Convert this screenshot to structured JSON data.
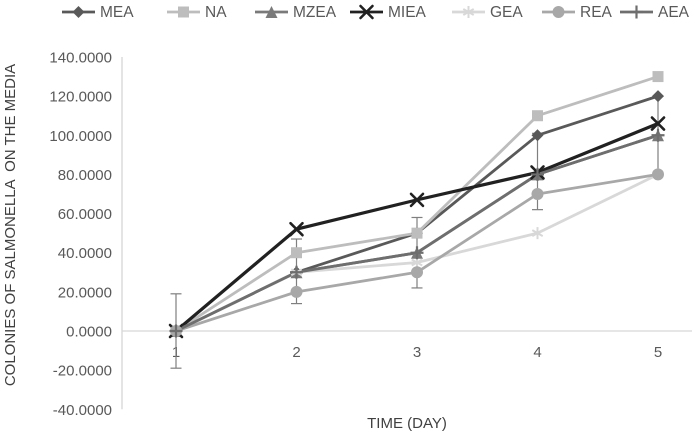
{
  "chart_data": {
    "type": "line",
    "title": "",
    "xlabel": "TIME (DAY)",
    "ylabel": "COLONIES OF SALMONELLA  ON THE MEDIA",
    "x_categories": [
      "1",
      "2",
      "3",
      "4",
      "5"
    ],
    "ylim": [
      -40,
      140
    ],
    "y_tick_labels": [
      "140.0000",
      "120.0000",
      "100.0000",
      "80.0000",
      "60.0000",
      "40.0000",
      "20.0000",
      "0.0000",
      "-20.0000",
      "-40.0000"
    ],
    "y_tick_values": [
      140,
      120,
      100,
      80,
      60,
      40,
      20,
      0,
      -20,
      -40
    ],
    "grid": "off",
    "legend_position": "top",
    "series": [
      {
        "name": "MEA",
        "marker": "diamond",
        "color": "#595959",
        "values": [
          0,
          30,
          50,
          100,
          120
        ]
      },
      {
        "name": "NA",
        "marker": "square",
        "color": "#bdbdbd",
        "values": [
          0,
          40,
          50,
          110,
          130
        ]
      },
      {
        "name": "MZEA",
        "marker": "triangle",
        "color": "#7a7a7a",
        "values": [
          0,
          30,
          40,
          80,
          100
        ]
      },
      {
        "name": "MIEA",
        "marker": "x",
        "color": "#212121",
        "values": [
          0,
          52,
          67,
          81,
          106
        ]
      },
      {
        "name": "GEA",
        "marker": "asterisk",
        "color": "#d8d8d8",
        "values": [
          0,
          30,
          35,
          50,
          80
        ]
      },
      {
        "name": "REA",
        "marker": "circle",
        "color": "#a8a8a8",
        "values": [
          0,
          20,
          30,
          70,
          80
        ]
      },
      {
        "name": "AEA",
        "marker": "plus",
        "color": "#6e6e6e",
        "values": [
          0,
          30,
          40,
          80,
          100
        ]
      }
    ],
    "error_bars": [
      {
        "x_index": 0,
        "high": 19,
        "low": -19
      },
      {
        "x_index": 1,
        "high": 47,
        "low": 14
      },
      {
        "x_index": 2,
        "high": 58,
        "low": 22
      },
      {
        "x_index": 3,
        "high": 101,
        "low": 62
      },
      {
        "x_index": 4,
        "high": 120,
        "low": 80
      }
    ],
    "error_bar_color": "#7f7f7f",
    "axis_color": "#d6d6d6",
    "text_color": "#595959"
  }
}
